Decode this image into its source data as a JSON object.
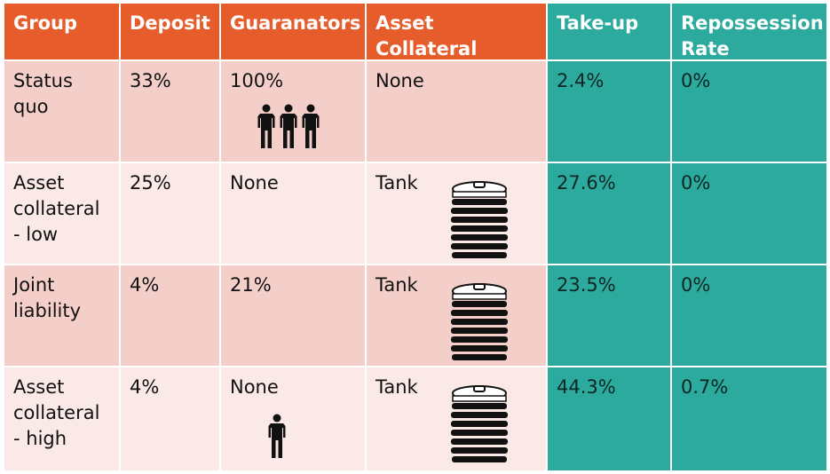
{
  "columns": [
    "Group",
    "Deposit",
    "Guaranators",
    "Asset Collateral",
    "Take-up",
    "Repossession Rate"
  ],
  "rows": [
    {
      "group": "Status quo",
      "deposit": "33%",
      "guarantors": "100%",
      "collateral": "None",
      "takeup": "2.4%",
      "repossession": "0%",
      "guarantor_icon": "three-people-icon",
      "collateral_icon": ""
    },
    {
      "group": "Asset collateral - low",
      "deposit": "25%",
      "guarantors": "None",
      "collateral": "Tank",
      "takeup": "27.6%",
      "repossession": "0%",
      "guarantor_icon": "",
      "collateral_icon": "water-tank-icon"
    },
    {
      "group": "Joint liability",
      "deposit": "4%",
      "guarantors": "21%",
      "collateral": "Tank",
      "takeup": "23.5%",
      "repossession": "0%",
      "guarantor_icon": "",
      "collateral_icon": "water-tank-icon"
    },
    {
      "group": "Asset collateral - high",
      "deposit": "4%",
      "guarantors": "None",
      "collateral": "Tank",
      "takeup": "44.3%",
      "repossession": "0.7%",
      "guarantor_icon": "single-person-icon",
      "collateral_icon": "water-tank-icon"
    }
  ],
  "colors": {
    "header": "#e65c2a",
    "teal": "#2daa9e",
    "row_dark": "#f4cfca",
    "row_light": "#fbe9e7"
  }
}
